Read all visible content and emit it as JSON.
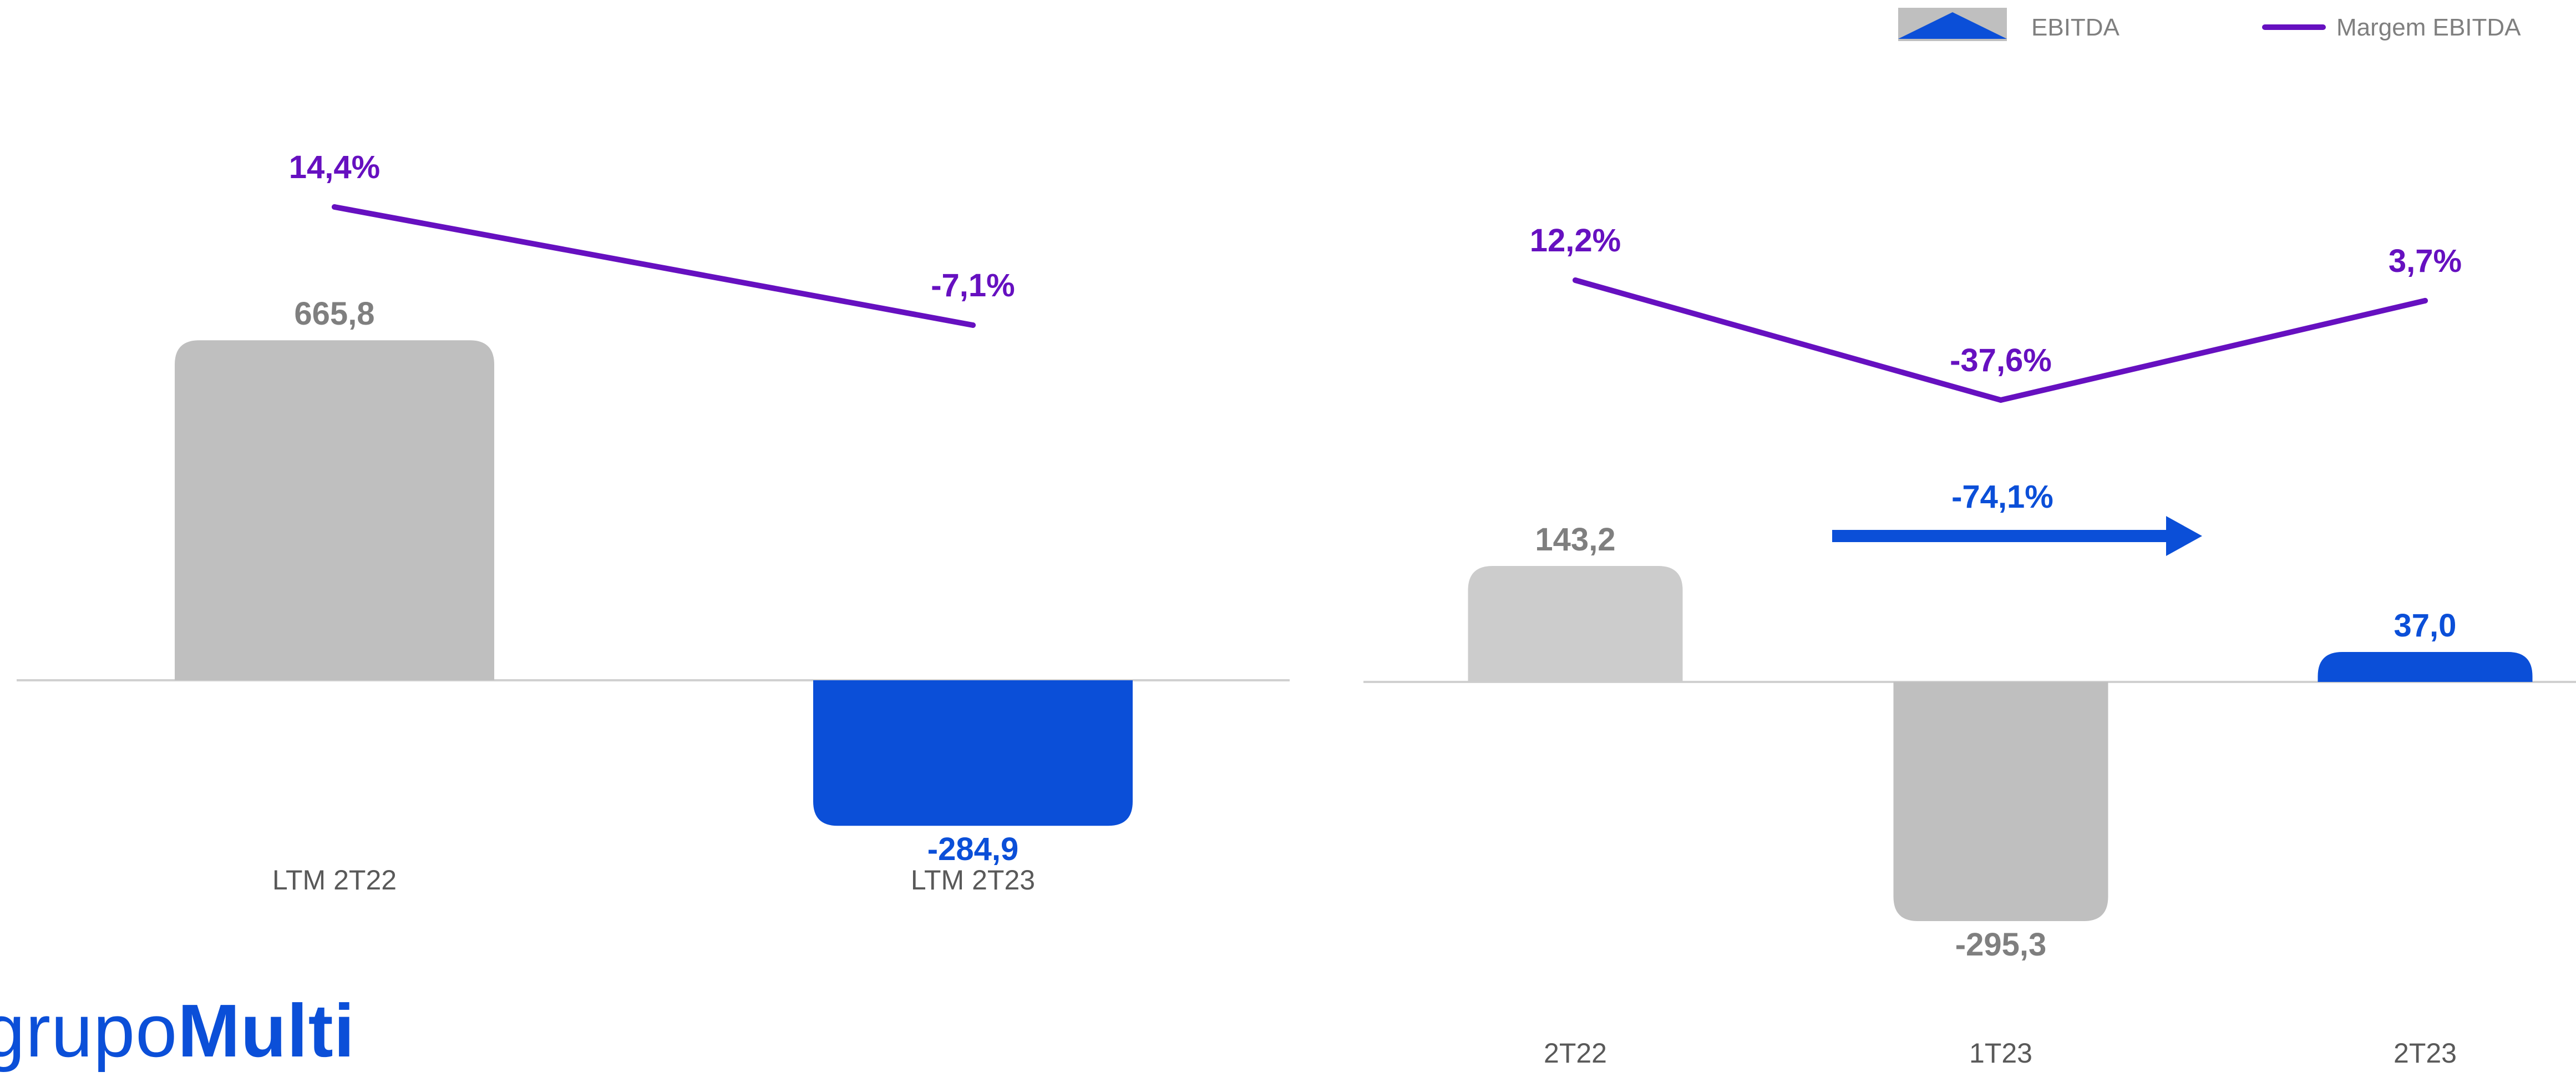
{
  "legend": {
    "position": "top-right",
    "items": [
      {
        "label": "EBITDA",
        "kind": "bar"
      },
      {
        "label": "Margem EBITDA",
        "kind": "line"
      }
    ]
  },
  "colors": {
    "gray_bar": "#bfbfbf",
    "gray_bar_light": "#cccccc",
    "blue": "#0b4fd8",
    "purple": "#6610c0",
    "value_gray": "#7f7f7f",
    "axis_label": "#595959"
  },
  "logo": {
    "part1": "grupo",
    "part2": "Multi"
  },
  "chart_data": [
    {
      "type": "bar",
      "categories": [
        "LTM 2T22",
        "LTM 2T23"
      ],
      "series": [
        {
          "name": "EBITDA",
          "values": [
            665.8,
            -284.9
          ],
          "labels": [
            "665,8",
            "-284,9"
          ]
        },
        {
          "name": "Margem EBITDA",
          "type": "line",
          "values": [
            14.4,
            -7.1
          ],
          "labels": [
            "14,4%",
            "-7,1%"
          ]
        }
      ]
    },
    {
      "type": "bar",
      "categories": [
        "2T22",
        "1T23",
        "2T23"
      ],
      "series": [
        {
          "name": "EBITDA",
          "values": [
            143.2,
            -295.3,
            37.0
          ],
          "labels": [
            "143,2",
            "-295,3",
            "37,0"
          ]
        },
        {
          "name": "Margem EBITDA",
          "type": "line",
          "values": [
            12.2,
            -37.6,
            3.7
          ],
          "labels": [
            "12,2%",
            "-37,6%",
            "3,7%"
          ]
        }
      ],
      "annotation": {
        "text": "-74,1%",
        "from": "2T22",
        "to": "2T23"
      }
    }
  ]
}
